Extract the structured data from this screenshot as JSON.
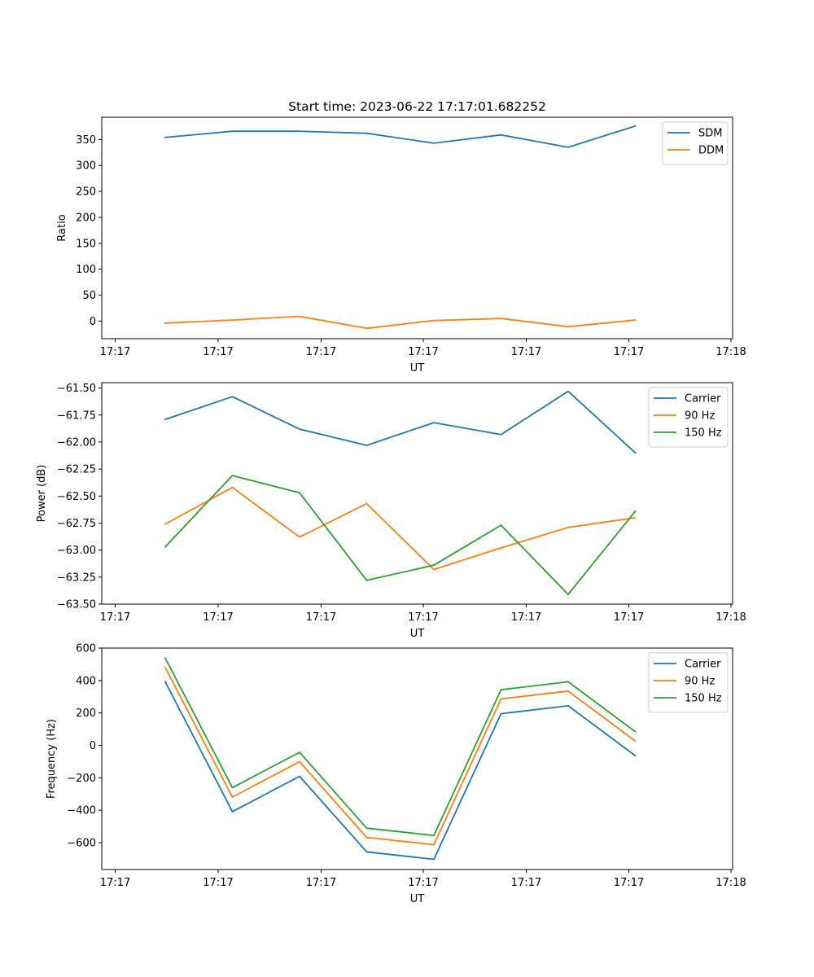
{
  "title": "Start time: 2023-06-22 17:17:01.682252",
  "chart_data": [
    {
      "type": "line",
      "xlabel": "UT",
      "ylabel": "Ratio",
      "x_tick_labels": [
        "17:17",
        "17:17",
        "17:17",
        "17:17",
        "17:17",
        "17:17",
        "17:18"
      ],
      "ylim": [
        -34,
        393
      ],
      "yticks": [
        0,
        50,
        100,
        150,
        200,
        250,
        300,
        350
      ],
      "yticklabels": [
        "0",
        "50",
        "100",
        "150",
        "200",
        "250",
        "300",
        "350"
      ],
      "legend": "upper right",
      "series": [
        {
          "name": "SDM",
          "color": "#1f77b4",
          "values": [
            354,
            366,
            366,
            362,
            343,
            359,
            335,
            376
          ]
        },
        {
          "name": "DDM",
          "color": "#ff7f0e",
          "values": [
            -4,
            2,
            9,
            -14,
            1,
            5,
            -11,
            2
          ]
        }
      ]
    },
    {
      "type": "line",
      "xlabel": "UT",
      "ylabel": "Power (dB)",
      "x_tick_labels": [
        "17:17",
        "17:17",
        "17:17",
        "17:17",
        "17:17",
        "17:17",
        "17:18"
      ],
      "ylim": [
        -63.5,
        -61.45
      ],
      "yticks": [
        -63.5,
        -63.25,
        -63.0,
        -62.75,
        -62.5,
        -62.25,
        -62.0,
        -61.75,
        -61.5
      ],
      "yticklabels": [
        "−63.50",
        "−63.25",
        "−63.00",
        "−62.75",
        "−62.50",
        "−62.25",
        "−62.00",
        "−61.75",
        "−61.50"
      ],
      "legend": "upper right",
      "series": [
        {
          "name": "Carrier",
          "color": "#1f77b4",
          "values": [
            -61.79,
            -61.58,
            -61.88,
            -62.03,
            -61.82,
            -61.93,
            -61.53,
            -62.1
          ]
        },
        {
          "name": "90 Hz",
          "color": "#ff7f0e",
          "values": [
            -62.76,
            -62.42,
            -62.88,
            -62.57,
            -63.18,
            -62.98,
            -62.79,
            -62.7
          ]
        },
        {
          "name": "150 Hz",
          "color": "#2ca02c",
          "values": [
            -62.97,
            -62.31,
            -62.47,
            -63.28,
            -63.14,
            -62.77,
            -63.41,
            -62.64
          ]
        }
      ]
    },
    {
      "type": "line",
      "xlabel": "UT",
      "ylabel": "Frequency (Hz)",
      "x_tick_labels": [
        "17:17",
        "17:17",
        "17:17",
        "17:17",
        "17:17",
        "17:17",
        "17:18"
      ],
      "ylim": [
        -766,
        600
      ],
      "yticks": [
        -600,
        -400,
        -200,
        0,
        200,
        400,
        600
      ],
      "yticklabels": [
        "−600",
        "−400",
        "−200",
        "0",
        "200",
        "400",
        "600"
      ],
      "legend": "upper right",
      "series": [
        {
          "name": "Carrier",
          "color": "#1f77b4",
          "values": [
            392,
            -409,
            -191,
            -657,
            -703,
            195,
            244,
            -64
          ]
        },
        {
          "name": "90 Hz",
          "color": "#ff7f0e",
          "values": [
            481,
            -319,
            -101,
            -568,
            -613,
            286,
            335,
            26
          ]
        },
        {
          "name": "150 Hz",
          "color": "#2ca02c",
          "values": [
            538,
            -261,
            -43,
            -511,
            -556,
            343,
            392,
            84
          ]
        }
      ]
    }
  ]
}
